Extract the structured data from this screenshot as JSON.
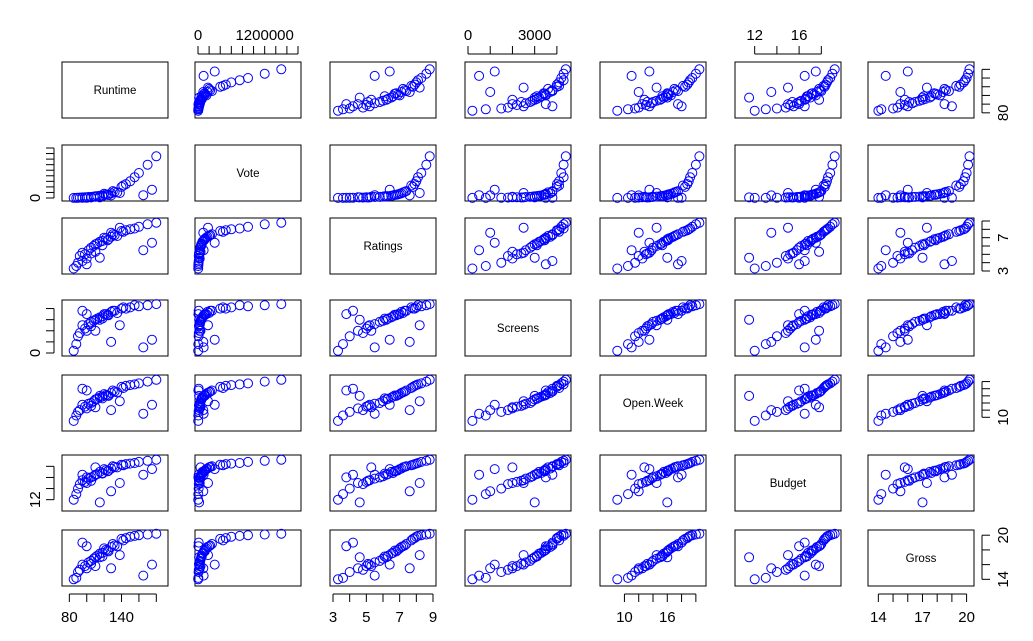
{
  "chart_data": {
    "type": "scatter-matrix",
    "variables": [
      "Runtime",
      "Vote",
      "Ratings",
      "Screens",
      "Open.Week",
      "Budget",
      "Gross"
    ],
    "ranges": [
      [
        75,
        190
      ],
      [
        0,
        1800000
      ],
      [
        3,
        9
      ],
      [
        0,
        4500
      ],
      [
        7,
        21
      ],
      [
        10.5,
        19.5
      ],
      [
        13.5,
        20.3
      ]
    ],
    "marker_color": "#0000ff",
    "top_axis": [
      {
        "var_index": 1,
        "labels": [
          "0",
          "1200000"
        ],
        "label_values": [
          0,
          1200000
        ],
        "tick_values": [
          0,
          200000,
          400000,
          600000,
          800000,
          1000000,
          1200000,
          1400000,
          1600000,
          1800000
        ]
      },
      {
        "var_index": 3,
        "labels": [
          "0",
          "3000"
        ],
        "label_values": [
          0,
          3000
        ],
        "tick_values": [
          0,
          1000,
          2000,
          3000,
          4000
        ]
      },
      {
        "var_index": 5,
        "labels": [
          "12",
          "16"
        ],
        "label_values": [
          12,
          16
        ],
        "tick_values": [
          12,
          14,
          16,
          18
        ]
      }
    ],
    "bottom_axis": [
      {
        "var_index": 0,
        "labels": [
          "80",
          "140"
        ],
        "label_values": [
          80,
          140
        ],
        "tick_values": [
          80,
          100,
          120,
          140,
          160,
          180
        ]
      },
      {
        "var_index": 2,
        "labels": [
          "3",
          "5",
          "7",
          "9"
        ],
        "label_values": [
          3,
          5,
          7,
          9
        ],
        "tick_values": [
          3,
          4,
          5,
          6,
          7,
          8,
          9
        ]
      },
      {
        "var_index": 4,
        "labels": [
          "10",
          "16"
        ],
        "label_values": [
          10,
          16
        ],
        "tick_values": [
          10,
          12,
          14,
          16,
          18,
          20
        ]
      },
      {
        "var_index": 6,
        "labels": [
          "14",
          "17",
          "20"
        ],
        "label_values": [
          14,
          17,
          20
        ],
        "tick_values": [
          14,
          15,
          16,
          17,
          18,
          19,
          20
        ]
      }
    ],
    "left_axis": [
      {
        "var_index": 1,
        "labels": [
          "0"
        ],
        "label_values": [
          0
        ],
        "tick_values": [
          0,
          200000,
          400000,
          600000,
          800000,
          1000000,
          1200000,
          1400000,
          1600000,
          1800000
        ]
      },
      {
        "var_index": 3,
        "labels": [
          "0"
        ],
        "label_values": [
          0
        ],
        "tick_values": [
          0,
          1000,
          2000,
          3000,
          4000
        ]
      },
      {
        "var_index": 5,
        "labels": [
          "12"
        ],
        "label_values": [
          12
        ],
        "tick_values": [
          12,
          14,
          16,
          18
        ]
      }
    ],
    "right_axis": [
      {
        "var_index": 0,
        "labels": [
          "80"
        ],
        "label_values": [
          80
        ],
        "tick_values": [
          80,
          100,
          120,
          140,
          160,
          180
        ]
      },
      {
        "var_index": 2,
        "labels": [
          "3",
          "7"
        ],
        "label_values": [
          3,
          7
        ],
        "tick_values": [
          3,
          4,
          5,
          6,
          7,
          8,
          9
        ]
      },
      {
        "var_index": 4,
        "labels": [
          "10"
        ],
        "label_values": [
          10
        ],
        "tick_values": [
          10,
          12,
          14,
          16,
          18,
          20
        ]
      },
      {
        "var_index": 6,
        "labels": [
          "14",
          "20"
        ],
        "label_values": [
          14,
          20
        ],
        "tick_values": [
          14,
          16,
          18,
          20
        ]
      }
    ],
    "points": [
      [
        100,
        30000,
        4.5,
        2000,
        12.5,
        15,
        15.5
      ],
      [
        95,
        20000,
        5.2,
        2500,
        13.5,
        15.5,
        16
      ],
      [
        110,
        60000,
        6.2,
        3000,
        15,
        16.5,
        17
      ],
      [
        120,
        150000,
        7.0,
        3500,
        16.5,
        17.5,
        18.2
      ],
      [
        130,
        250000,
        7.4,
        3800,
        17.5,
        18,
        18.8
      ],
      [
        140,
        400000,
        7.8,
        4000,
        18.5,
        18.3,
        19.5
      ],
      [
        105,
        40000,
        5.8,
        2800,
        14,
        16,
        16.5
      ],
      [
        90,
        10000,
        4.0,
        1500,
        11.5,
        14,
        15
      ],
      [
        115,
        80000,
        6.5,
        3200,
        15.5,
        17,
        17.5
      ],
      [
        125,
        120000,
        6.8,
        3400,
        16,
        17.2,
        17.8
      ],
      [
        135,
        200000,
        7.2,
        3600,
        17,
        17.8,
        18.5
      ],
      [
        150,
        600000,
        8.0,
        4100,
        19,
        18.5,
        19.8
      ],
      [
        160,
        900000,
        8.3,
        4200,
        19.5,
        18.8,
        20
      ],
      [
        170,
        1200000,
        8.6,
        4300,
        20,
        19,
        20.1
      ],
      [
        98,
        25000,
        5.0,
        2200,
        13,
        15.2,
        15.8
      ],
      [
        108,
        50000,
        6.0,
        2900,
        14.5,
        16.2,
        16.8
      ],
      [
        118,
        90000,
        6.6,
        3300,
        15.8,
        16.8,
        17.6
      ],
      [
        128,
        170000,
        7.1,
        3700,
        16.8,
        17.6,
        18.4
      ],
      [
        145,
        500000,
        7.9,
        4000,
        18.8,
        18.4,
        19.6
      ],
      [
        88,
        5000,
        3.6,
        800,
        10.5,
        13,
        14.2
      ],
      [
        92,
        15000,
        4.8,
        1800,
        12,
        14.8,
        15.3
      ],
      [
        102,
        35000,
        5.5,
        2600,
        13.8,
        15.8,
        16.3
      ],
      [
        112,
        70000,
        6.3,
        3100,
        15.2,
        16.6,
        17.2
      ],
      [
        122,
        130000,
        6.9,
        3500,
        16.2,
        17.3,
        18
      ],
      [
        132,
        220000,
        7.3,
        3800,
        17.2,
        17.9,
        18.6
      ],
      [
        142,
        450000,
        7.7,
        4100,
        18.2,
        18.2,
        19.3
      ],
      [
        155,
        750000,
        8.1,
        4300,
        19.2,
        18.6,
        19.9
      ],
      [
        180,
        1500000,
        8.8,
        4400,
        20.5,
        19.2,
        20.2
      ],
      [
        175,
        300000,
        6.4,
        1200,
        13.5,
        17.5,
        16
      ],
      [
        165,
        100000,
        5.5,
        500,
        11,
        16.5,
        14.5
      ],
      [
        100,
        8000,
        3.8,
        3500,
        17.5,
        16,
        18.5
      ],
      [
        95,
        12000,
        4.2,
        3800,
        18,
        16.5,
        19
      ],
      [
        110,
        45000,
        5.3,
        2000,
        12.8,
        17.8,
        15.8
      ],
      [
        85,
        3000,
        3.3,
        200,
        9,
        12,
        14
      ],
      [
        115,
        20000,
        4.6,
        3000,
        16,
        11.5,
        17
      ],
      [
        128,
        95000,
        7.6,
        1000,
        12,
        13.5,
        15.5
      ],
      [
        138,
        180000,
        8.2,
        2500,
        14.5,
        15,
        17.3
      ],
      [
        105,
        18000,
        5.1,
        2400,
        13.2,
        15.4,
        16.1
      ],
      [
        118,
        65000,
        6.1,
        3100,
        15.3,
        16.7,
        17.1
      ],
      [
        124,
        110000,
        6.7,
        3450,
        16.1,
        17.1,
        17.9
      ]
    ]
  }
}
